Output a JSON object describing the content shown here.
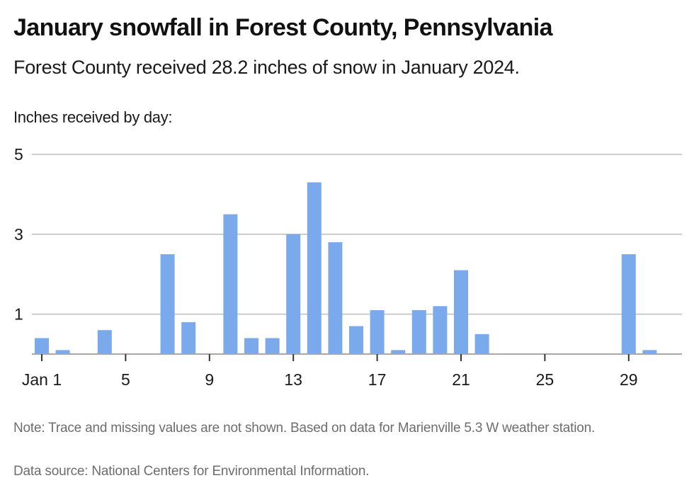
{
  "header": {
    "title": "January snowfall in Forest County, Pennsylvania",
    "subtitle": "Forest County received 28.2 inches of snow in January 2024.",
    "axis_caption": "Inches received by day:"
  },
  "footer": {
    "note": "Note: Trace and missing values are not shown. Based on data for Marienville 5.3 W weather station.",
    "source": "Data source: National Centers for Environmental Information."
  },
  "colors": {
    "bar": "#7aaaeb",
    "grid": "#bdbdbd",
    "axis": "#a8a8a8",
    "tick": "#333333"
  },
  "chart_data": {
    "type": "bar",
    "title": "January snowfall in Forest County, Pennsylvania",
    "subtitle": "Forest County received 28.2 inches of snow in January 2024.",
    "xlabel": "",
    "ylabel": "Inches received by day:",
    "unit": "inches",
    "total": 28.2,
    "ylim": [
      0,
      5
    ],
    "xlim": [
      1,
      31
    ],
    "grid": true,
    "y_ticks": [
      1,
      3,
      5
    ],
    "y_tick_labels": [
      "1",
      "3",
      "5"
    ],
    "x_ticks": [
      1,
      5,
      9,
      13,
      17,
      21,
      25,
      29
    ],
    "x_tick_labels": [
      "Jan 1",
      "5",
      "9",
      "13",
      "17",
      "21",
      "25",
      "29"
    ],
    "days": [
      1,
      2,
      3,
      4,
      5,
      6,
      7,
      8,
      9,
      10,
      11,
      12,
      13,
      14,
      15,
      16,
      17,
      18,
      19,
      20,
      21,
      22,
      23,
      24,
      25,
      26,
      27,
      28,
      29,
      30,
      31
    ],
    "values": [
      0.4,
      0.1,
      null,
      0.6,
      null,
      null,
      2.5,
      0.8,
      null,
      3.5,
      0.4,
      0.4,
      3.0,
      4.3,
      2.8,
      0.7,
      1.1,
      0.1,
      1.1,
      1.2,
      2.1,
      0.5,
      null,
      null,
      null,
      null,
      null,
      null,
      2.5,
      0.1,
      null
    ]
  }
}
